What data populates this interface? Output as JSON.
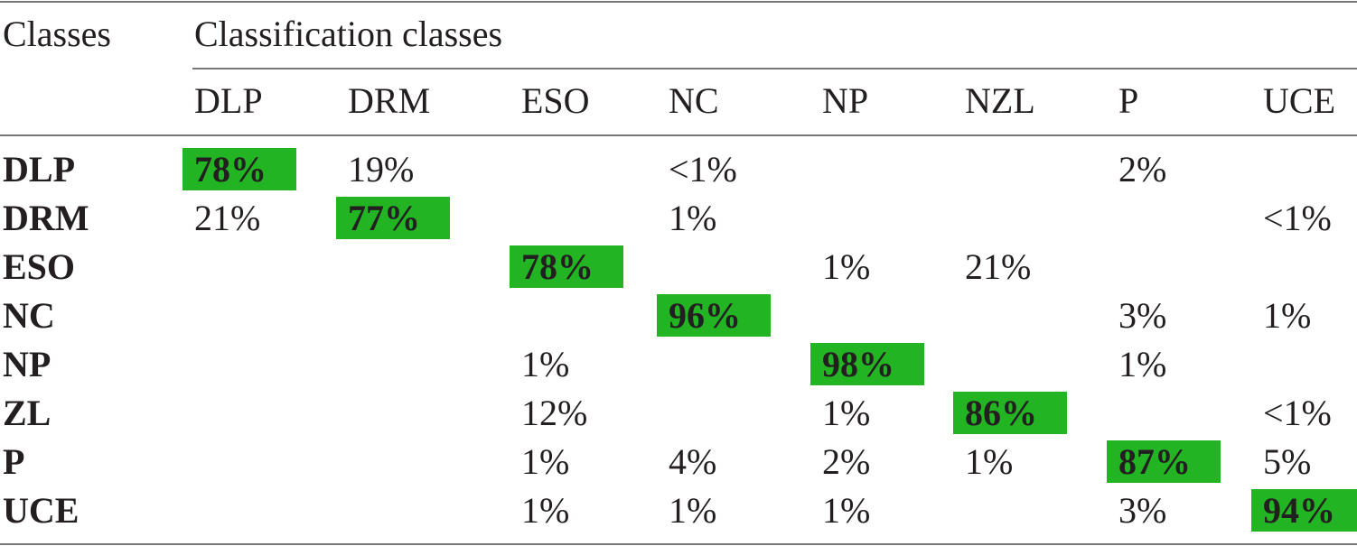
{
  "header": {
    "corner": "Classes",
    "group": "Classification classes",
    "columns": [
      "DLP",
      "DRM",
      "ESO",
      "NC",
      "NP",
      "NZL",
      "P",
      "UCE"
    ]
  },
  "rows": [
    {
      "label": "DLP",
      "cells": [
        "78%",
        "19%",
        null,
        "<1%",
        null,
        null,
        "2%",
        null
      ]
    },
    {
      "label": "DRM",
      "cells": [
        "21%",
        "77%",
        null,
        "1%",
        null,
        null,
        null,
        "<1%"
      ]
    },
    {
      "label": "ESO",
      "cells": [
        null,
        null,
        "78%",
        null,
        "1%",
        "21%",
        null,
        null
      ]
    },
    {
      "label": "NC",
      "cells": [
        null,
        null,
        null,
        "96%",
        null,
        null,
        "3%",
        "1%"
      ]
    },
    {
      "label": "NP",
      "cells": [
        null,
        null,
        "1%",
        null,
        "98%",
        null,
        "1%",
        null
      ]
    },
    {
      "label": "ZL",
      "cells": [
        null,
        null,
        "12%",
        null,
        "1%",
        "86%",
        null,
        "<1%"
      ]
    },
    {
      "label": "P",
      "cells": [
        null,
        null,
        "1%",
        "4%",
        "2%",
        "1%",
        "87%",
        "5%"
      ]
    },
    {
      "label": "UCE",
      "cells": [
        null,
        null,
        "1%",
        "1%",
        "1%",
        null,
        "3%",
        "94%"
      ]
    }
  ]
}
